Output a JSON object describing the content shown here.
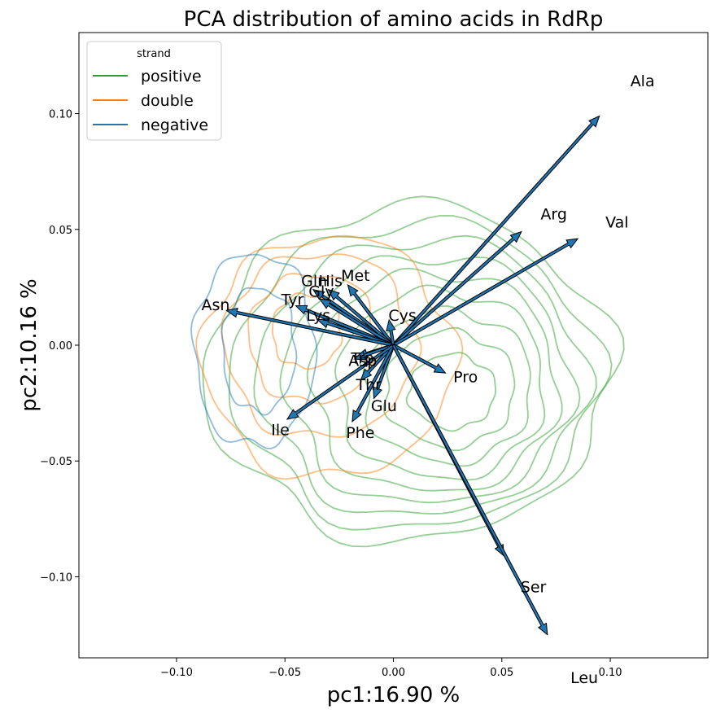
{
  "chart_data": {
    "type": "scatter",
    "title": "PCA distribution of amino acids in RdRp",
    "xlabel": "pc1:16.90 %",
    "ylabel": "pc2:10.16 %",
    "xlim": [
      -0.145,
      0.145
    ],
    "ylim": [
      -0.135,
      0.135
    ],
    "x_ticks": [
      -0.1,
      -0.05,
      0.0,
      0.05,
      0.1
    ],
    "x_tick_labels": [
      "−0.10",
      "−0.05",
      "0.00",
      "0.05",
      "0.10"
    ],
    "y_ticks": [
      -0.1,
      -0.05,
      0.0,
      0.05,
      0.1
    ],
    "y_tick_labels": [
      "−0.10",
      "−0.05",
      "0.00",
      "0.05",
      "0.10"
    ],
    "grid": false,
    "legend": {
      "title": "strand",
      "placement": "top-left",
      "entries": [
        {
          "name": "positive",
          "color": "#2ca02c"
        },
        {
          "name": "double",
          "color": "#ff7f0e"
        },
        {
          "name": "negative",
          "color": "#1f77b4"
        }
      ]
    },
    "arrow_color": "#1f77b4",
    "arrows": [
      {
        "label": "Ala",
        "x": 0.095,
        "y": 0.099
      },
      {
        "label": "Arg",
        "x": 0.059,
        "y": 0.049
      },
      {
        "label": "Val",
        "x": 0.085,
        "y": 0.046
      },
      {
        "label": "Met",
        "x": -0.021,
        "y": 0.026
      },
      {
        "label": "Gln",
        "x": -0.037,
        "y": 0.024
      },
      {
        "label": "His",
        "x": -0.03,
        "y": 0.024
      },
      {
        "label": "Gly",
        "x": -0.034,
        "y": 0.02
      },
      {
        "label": "Tyr",
        "x": -0.045,
        "y": 0.017
      },
      {
        "label": "Lys",
        "x": -0.035,
        "y": 0.011
      },
      {
        "label": "Asn",
        "x": -0.077,
        "y": 0.015
      },
      {
        "label": "Cys",
        "x": -0.002,
        "y": 0.011
      },
      {
        "label": "Trp",
        "x": -0.017,
        "y": -0.005
      },
      {
        "label": "Asp",
        "x": -0.018,
        "y": -0.006
      },
      {
        "label": "Pro",
        "x": 0.024,
        "y": -0.012
      },
      {
        "label": "Thr",
        "x": -0.015,
        "y": -0.015
      },
      {
        "label": "Glu",
        "x": -0.009,
        "y": -0.023
      },
      {
        "label": "Phe",
        "x": -0.019,
        "y": -0.033
      },
      {
        "label": "Ile",
        "x": -0.049,
        "y": -0.032
      },
      {
        "label": "Ser",
        "x": 0.051,
        "y": -0.091
      },
      {
        "label": "Leu",
        "x": 0.071,
        "y": -0.125
      }
    ],
    "contours": {
      "positive": {
        "color": "#2ca02c",
        "levels": [
          {
            "cx": 0.007,
            "cy": -0.012,
            "rx": 0.093,
            "ry": 0.072
          },
          {
            "cx": 0.01,
            "cy": -0.013,
            "rx": 0.084,
            "ry": 0.066
          },
          {
            "cx": 0.013,
            "cy": -0.014,
            "rx": 0.075,
            "ry": 0.06
          },
          {
            "cx": 0.016,
            "cy": -0.015,
            "rx": 0.066,
            "ry": 0.054
          },
          {
            "cx": 0.019,
            "cy": -0.016,
            "rx": 0.057,
            "ry": 0.048
          },
          {
            "cx": 0.022,
            "cy": -0.017,
            "rx": 0.048,
            "ry": 0.041
          },
          {
            "cx": 0.025,
            "cy": -0.018,
            "rx": 0.039,
            "ry": 0.033
          },
          {
            "cx": 0.026,
            "cy": -0.019,
            "rx": 0.03,
            "ry": 0.025
          },
          {
            "cx": 0.027,
            "cy": -0.02,
            "rx": 0.02,
            "ry": 0.016
          }
        ]
      },
      "double": {
        "color": "#ff7f0e",
        "levels": [
          {
            "cx": -0.03,
            "cy": -0.005,
            "rx": 0.058,
            "ry": 0.052
          },
          {
            "cx": -0.034,
            "cy": 0.0,
            "rx": 0.044,
            "ry": 0.04
          },
          {
            "cx": -0.037,
            "cy": 0.003,
            "rx": 0.03,
            "ry": 0.028
          },
          {
            "cx": -0.04,
            "cy": 0.006,
            "rx": 0.016,
            "ry": 0.016
          }
        ]
      },
      "negative": {
        "color": "#1f77b4",
        "levels": [
          {
            "cx": -0.064,
            "cy": -0.002,
            "rx": 0.028,
            "ry": 0.042
          },
          {
            "cx": -0.062,
            "cy": -0.002,
            "rx": 0.017,
            "ry": 0.027
          }
        ]
      }
    }
  }
}
